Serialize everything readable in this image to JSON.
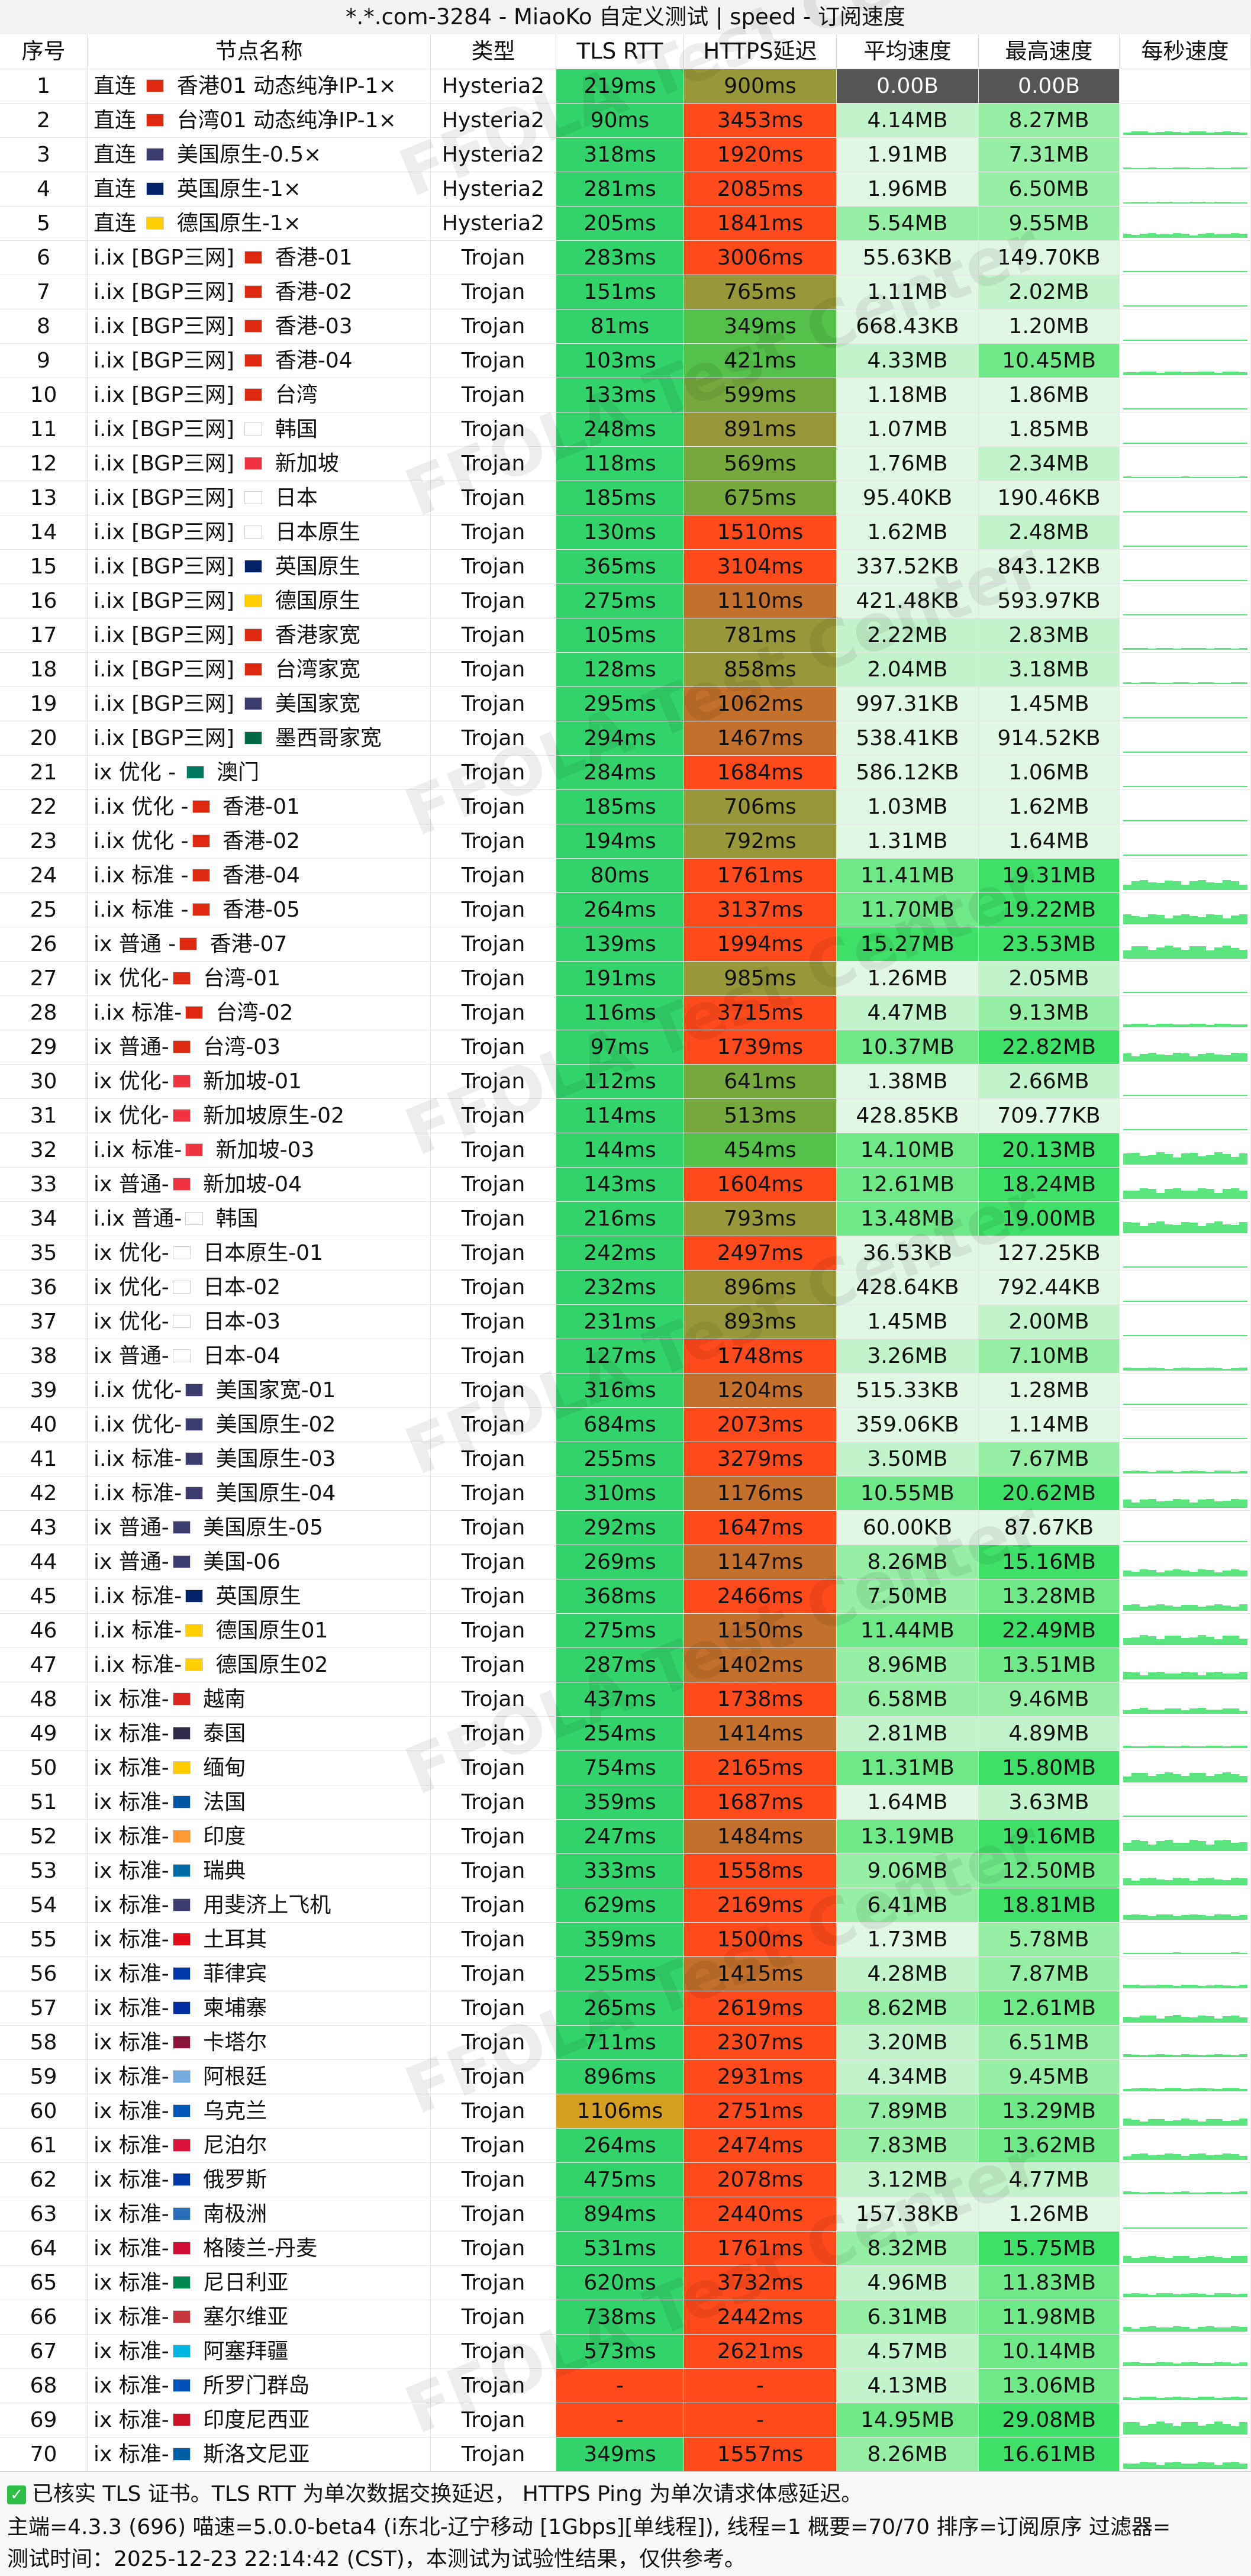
{
  "title": "*.*.com-3284 - MiaoKo 自定义测试 | speed - 订阅速度",
  "headers": [
    "序号",
    "节点名称",
    "类型",
    "TLS RTT",
    "HTTPS延迟",
    "平均速度",
    "最高速度",
    "每秒速度"
  ],
  "colors": {
    "tls_good": "#33d36b",
    "https_red": "#ff4a1c",
    "https_olive": "#9c9a33",
    "https_green": "#66bb44",
    "zero_bg": "#555555"
  },
  "rows": [
    [
      "1",
      "直连 🇭🇰 香港01 动态纯净IP-1×",
      "Hysteria2",
      "219ms",
      "900ms",
      "0.00B",
      "0.00B"
    ],
    [
      "2",
      "直连 🇨🇳 台湾01 动态纯净IP-1×",
      "Hysteria2",
      "90ms",
      "3453ms",
      "4.14MB",
      "8.27MB"
    ],
    [
      "3",
      "直连 🇺🇸 美国原生-0.5×",
      "Hysteria2",
      "318ms",
      "1920ms",
      "1.91MB",
      "7.31MB"
    ],
    [
      "4",
      "直连 🇬🇧 英国原生-1×",
      "Hysteria2",
      "281ms",
      "2085ms",
      "1.96MB",
      "6.50MB"
    ],
    [
      "5",
      "直连 🇩🇪 德国原生-1×",
      "Hysteria2",
      "205ms",
      "1841ms",
      "5.54MB",
      "9.55MB"
    ],
    [
      "6",
      "ⅰ.ⅰx [BGP三网] 🇭🇰 香港-01",
      "Trojan",
      "283ms",
      "3006ms",
      "55.63KB",
      "149.70KB"
    ],
    [
      "7",
      "ⅰ.ⅰx [BGP三网] 🇭🇰 香港-02",
      "Trojan",
      "151ms",
      "765ms",
      "1.11MB",
      "2.02MB"
    ],
    [
      "8",
      "ⅰ.ⅰx [BGP三网] 🇭🇰 香港-03",
      "Trojan",
      "81ms",
      "349ms",
      "668.43KB",
      "1.20MB"
    ],
    [
      "9",
      "ⅰ.ⅰx [BGP三网] 🇭🇰 香港-04",
      "Trojan",
      "103ms",
      "421ms",
      "4.33MB",
      "10.45MB"
    ],
    [
      "10",
      "ⅰ.ⅰx [BGP三网] 🇨🇳 台湾",
      "Trojan",
      "133ms",
      "599ms",
      "1.18MB",
      "1.86MB"
    ],
    [
      "11",
      "ⅰ.ⅰx [BGP三网] 🇰🇷 韩国",
      "Trojan",
      "248ms",
      "891ms",
      "1.07MB",
      "1.85MB"
    ],
    [
      "12",
      "ⅰ.ⅰx [BGP三网] 🇸🇬 新加坡",
      "Trojan",
      "118ms",
      "569ms",
      "1.76MB",
      "2.34MB"
    ],
    [
      "13",
      "ⅰ.ⅰx [BGP三网] 🇯🇵 日本",
      "Trojan",
      "185ms",
      "675ms",
      "95.40KB",
      "190.46KB"
    ],
    [
      "14",
      "ⅰ.ⅰx [BGP三网] 🇯🇵 日本原生",
      "Trojan",
      "130ms",
      "1510ms",
      "1.62MB",
      "2.48MB"
    ],
    [
      "15",
      "ⅰ.ⅰx [BGP三网] 🇬🇧 英国原生",
      "Trojan",
      "365ms",
      "3104ms",
      "337.52KB",
      "843.12KB"
    ],
    [
      "16",
      "ⅰ.ⅰx [BGP三网] 🇩🇪 德国原生",
      "Trojan",
      "275ms",
      "1110ms",
      "421.48KB",
      "593.97KB"
    ],
    [
      "17",
      "ⅰ.ⅰx [BGP三网] 🇭🇰 香港家宽",
      "Trojan",
      "105ms",
      "781ms",
      "2.22MB",
      "2.83MB"
    ],
    [
      "18",
      "ⅰ.ⅰx [BGP三网] 🇨🇳 台湾家宽",
      "Trojan",
      "128ms",
      "858ms",
      "2.04MB",
      "3.18MB"
    ],
    [
      "19",
      "ⅰ.ⅰx [BGP三网] 🇺🇸 美国家宽",
      "Trojan",
      "295ms",
      "1062ms",
      "997.31KB",
      "1.45MB"
    ],
    [
      "20",
      "ⅰ.ⅰx [BGP三网] 🇲🇽 墨西哥家宽",
      "Trojan",
      "294ms",
      "1467ms",
      "538.41KB",
      "914.52KB"
    ],
    [
      "21",
      "ⅰx 优化 - 🇲🇴 澳门",
      "Trojan",
      "284ms",
      "1684ms",
      "586.12KB",
      "1.06MB"
    ],
    [
      "22",
      "ⅰ.ⅰx 优化 -🇭🇰 香港-01",
      "Trojan",
      "185ms",
      "706ms",
      "1.03MB",
      "1.62MB"
    ],
    [
      "23",
      "ⅰ.ⅰx 优化 -🇭🇰 香港-02",
      "Trojan",
      "194ms",
      "792ms",
      "1.31MB",
      "1.64MB"
    ],
    [
      "24",
      "ⅰ.ⅰx 标准 -🇭🇰 香港-04",
      "Trojan",
      "80ms",
      "1761ms",
      "11.41MB",
      "19.31MB"
    ],
    [
      "25",
      "ⅰ.ⅰx 标准 -🇭🇰 香港-05",
      "Trojan",
      "264ms",
      "3137ms",
      "11.70MB",
      "19.22MB"
    ],
    [
      "26",
      "ⅰx 普通 -🇭🇰 香港-07",
      "Trojan",
      "139ms",
      "1994ms",
      "15.27MB",
      "23.53MB"
    ],
    [
      "27",
      "ⅰx 优化-🇨🇳 台湾-01",
      "Trojan",
      "191ms",
      "985ms",
      "1.26MB",
      "2.05MB"
    ],
    [
      "28",
      "ⅰ.ⅰx 标准-🇨🇳 台湾-02",
      "Trojan",
      "116ms",
      "3715ms",
      "4.47MB",
      "9.13MB"
    ],
    [
      "29",
      "ⅰx 普通-🇨🇳 台湾-03",
      "Trojan",
      "97ms",
      "1739ms",
      "10.37MB",
      "22.82MB"
    ],
    [
      "30",
      "ⅰx 优化-🇸🇬 新加坡-01",
      "Trojan",
      "112ms",
      "641ms",
      "1.38MB",
      "2.66MB"
    ],
    [
      "31",
      "ⅰx 优化-🇸🇬 新加坡原生-02",
      "Trojan",
      "114ms",
      "513ms",
      "428.85KB",
      "709.77KB"
    ],
    [
      "32",
      "ⅰ.ⅰx 标准-🇸🇬 新加坡-03",
      "Trojan",
      "144ms",
      "454ms",
      "14.10MB",
      "20.13MB"
    ],
    [
      "33",
      "ⅰx 普通-🇸🇬 新加坡-04",
      "Trojan",
      "143ms",
      "1604ms",
      "12.61MB",
      "18.24MB"
    ],
    [
      "34",
      "ⅰ.ⅰx 普通-🇰🇷 韩国",
      "Trojan",
      "216ms",
      "793ms",
      "13.48MB",
      "19.00MB"
    ],
    [
      "35",
      "ⅰx 优化-🇯🇵 日本原生-01",
      "Trojan",
      "242ms",
      "2497ms",
      "36.53KB",
      "127.25KB"
    ],
    [
      "36",
      "ⅰx 优化-🇯🇵 日本-02",
      "Trojan",
      "232ms",
      "896ms",
      "428.64KB",
      "792.44KB"
    ],
    [
      "37",
      "ⅰx 优化-🇯🇵 日本-03",
      "Trojan",
      "231ms",
      "893ms",
      "1.45MB",
      "2.00MB"
    ],
    [
      "38",
      "ⅰx 普通-🇯🇵 日本-04",
      "Trojan",
      "127ms",
      "1748ms",
      "3.26MB",
      "7.10MB"
    ],
    [
      "39",
      "ⅰ.ⅰx 优化-🇺🇸 美国家宽-01",
      "Trojan",
      "316ms",
      "1204ms",
      "515.33KB",
      "1.28MB"
    ],
    [
      "40",
      "ⅰ.ⅰx 优化-🇺🇸 美国原生-02",
      "Trojan",
      "684ms",
      "2073ms",
      "359.06KB",
      "1.14MB"
    ],
    [
      "41",
      "ⅰ.ⅰx 标准-🇺🇸 美国原生-03",
      "Trojan",
      "255ms",
      "3279ms",
      "3.50MB",
      "7.67MB"
    ],
    [
      "42",
      "ⅰ.ⅰx 标准-🇺🇸 美国原生-04",
      "Trojan",
      "310ms",
      "1176ms",
      "10.55MB",
      "20.62MB"
    ],
    [
      "43",
      "ⅰx 普通-🇺🇸 美国原生-05",
      "Trojan",
      "292ms",
      "1647ms",
      "60.00KB",
      "87.67KB"
    ],
    [
      "44",
      "ⅰx 普通-🇺🇸 美国-06",
      "Trojan",
      "269ms",
      "1147ms",
      "8.26MB",
      "15.16MB"
    ],
    [
      "45",
      "ⅰ.ⅰx 标准-🇬🇧 英国原生",
      "Trojan",
      "368ms",
      "2466ms",
      "7.50MB",
      "13.28MB"
    ],
    [
      "46",
      "ⅰ.ⅰx 标准-🇩🇪 德国原生01",
      "Trojan",
      "275ms",
      "1150ms",
      "11.44MB",
      "22.49MB"
    ],
    [
      "47",
      "ⅰ.ⅰx 标准-🇩🇪 德国原生02",
      "Trojan",
      "287ms",
      "1402ms",
      "8.96MB",
      "13.51MB"
    ],
    [
      "48",
      "ⅰx 标准-🇻🇳 越南",
      "Trojan",
      "437ms",
      "1738ms",
      "6.58MB",
      "9.46MB"
    ],
    [
      "49",
      "ⅰx 标准-🇹🇭 泰国",
      "Trojan",
      "254ms",
      "1414ms",
      "2.81MB",
      "4.89MB"
    ],
    [
      "50",
      "ⅰx 标准-🇲🇲 缅甸",
      "Trojan",
      "754ms",
      "2165ms",
      "11.31MB",
      "15.80MB"
    ],
    [
      "51",
      "ⅰx 标准-🇫🇷 法国",
      "Trojan",
      "359ms",
      "1687ms",
      "1.64MB",
      "3.63MB"
    ],
    [
      "52",
      "ⅰx 标准-🇮🇳 印度",
      "Trojan",
      "247ms",
      "1484ms",
      "13.19MB",
      "19.16MB"
    ],
    [
      "53",
      "ⅰx 标准-🇸🇪 瑞典",
      "Trojan",
      "333ms",
      "1558ms",
      "9.06MB",
      "12.50MB"
    ],
    [
      "54",
      "ⅰx 标准-🇺🇸 用斐济上飞机",
      "Trojan",
      "629ms",
      "2169ms",
      "6.41MB",
      "18.81MB"
    ],
    [
      "55",
      "ⅰx 标准-🇹🇷 土耳其",
      "Trojan",
      "359ms",
      "1500ms",
      "1.73MB",
      "5.78MB"
    ],
    [
      "56",
      "ⅰx 标准-🇵🇭 菲律宾",
      "Trojan",
      "255ms",
      "1415ms",
      "4.28MB",
      "7.87MB"
    ],
    [
      "57",
      "ⅰx 标准-🇰🇭 柬埔寨",
      "Trojan",
      "265ms",
      "2619ms",
      "8.62MB",
      "12.61MB"
    ],
    [
      "58",
      "ⅰx 标准-🇶🇦 卡塔尔",
      "Trojan",
      "711ms",
      "2307ms",
      "3.20MB",
      "6.51MB"
    ],
    [
      "59",
      "ⅰx 标准-🇦🇷 阿根廷",
      "Trojan",
      "896ms",
      "2931ms",
      "4.34MB",
      "9.45MB"
    ],
    [
      "60",
      "ⅰx 标准-🇺🇦 乌克兰",
      "Trojan",
      "1106ms",
      "2751ms",
      "7.89MB",
      "13.29MB"
    ],
    [
      "61",
      "ⅰx 标准-🇳🇵 尼泊尔",
      "Trojan",
      "264ms",
      "2474ms",
      "7.83MB",
      "13.62MB"
    ],
    [
      "62",
      "ⅰx 标准-🇷🇺 俄罗斯",
      "Trojan",
      "475ms",
      "2078ms",
      "3.12MB",
      "4.77MB"
    ],
    [
      "63",
      "ⅰx 标准-🇦🇶 南极洲",
      "Trojan",
      "894ms",
      "2440ms",
      "157.38KB",
      "1.26MB"
    ],
    [
      "64",
      "ⅰx 标准-🇬🇱 格陵兰-丹麦",
      "Trojan",
      "531ms",
      "1761ms",
      "8.32MB",
      "15.75MB"
    ],
    [
      "65",
      "ⅰx 标准-🇳🇬 尼日利亚",
      "Trojan",
      "620ms",
      "3732ms",
      "4.96MB",
      "11.83MB"
    ],
    [
      "66",
      "ⅰx 标准-🇷🇸 塞尔维亚",
      "Trojan",
      "738ms",
      "2442ms",
      "6.31MB",
      "11.98MB"
    ],
    [
      "67",
      "ⅰx 标准-🇦🇿 阿塞拜疆",
      "Trojan",
      "573ms",
      "2621ms",
      "4.57MB",
      "10.14MB"
    ],
    [
      "68",
      "ⅰx 标准-🇸🇧 所罗门群岛",
      "Trojan",
      "-",
      "-",
      "4.13MB",
      "13.06MB"
    ],
    [
      "69",
      "ⅰx 标准-🇮🇩 印度尼西亚",
      "Trojan",
      "-",
      "-",
      "14.95MB",
      "29.08MB"
    ],
    [
      "70",
      "ⅰx 标准-🇸🇮 斯洛文尼亚",
      "Trojan",
      "349ms",
      "1557ms",
      "8.26MB",
      "16.61MB"
    ]
  ],
  "footer": {
    "line1": "已核实 TLS 证书。TLS RTT 为单次数据交换延迟， HTTPS Ping 为单次请求体感延迟。",
    "line2": "主端=4.3.3 (696) 喵速=5.0.0-beta4 (ⅰ东北-辽宁移动 [1Gbps][单线程]), 线程=1 概要=70/70 排序=订阅原序 过滤器=",
    "line3": "测试时间：2025-12-23 22:14:42 (CST)，本测试为试验性结果，仅供参考。",
    "check_icon": "check-square-icon"
  },
  "watermark": "FFOLA Test Center"
}
